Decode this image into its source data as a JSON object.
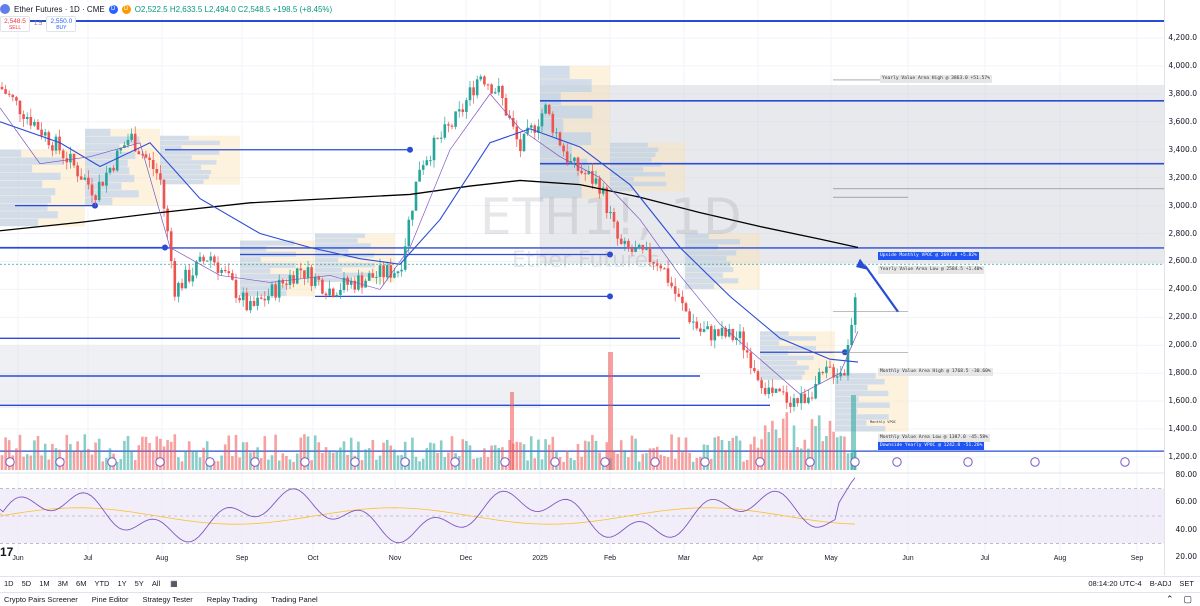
{
  "header": {
    "symbol_title": "Ether Futures · 1D · CME",
    "badge_a": "D",
    "badge_b": "D",
    "ohlc": "O2,522.5 H2,633.5 L2,494.0 C2,548.5 +198.5 (+8.45%)"
  },
  "trade": {
    "sell_price": "2,548.5",
    "sell_label": "SELL",
    "buy_price": "2,550.0",
    "buy_label": "BUY",
    "spread": "1.5"
  },
  "watermark": {
    "symbol": "ETH1!, 1D",
    "name": "Ether Futures"
  },
  "price_axis": [
    "4,200.0",
    "4,000.0",
    "3,800.0",
    "3,600.0",
    "3,400.0",
    "3,200.0",
    "3,000.0",
    "2,800.0",
    "2,600.0",
    "2,400.0",
    "2,200.0",
    "2,000.0",
    "1,800.0",
    "1,600.0",
    "1,400.0",
    "1,200.0"
  ],
  "rsi_axis": [
    "80.00",
    "60.00",
    "40.00",
    "20.00"
  ],
  "time_axis": [
    "Jun",
    "Jul",
    "Aug",
    "Sep",
    "Oct",
    "Nov",
    "Dec",
    "2025",
    "Feb",
    "Mar",
    "Apr",
    "May",
    "Jun",
    "Jul",
    "Aug",
    "Sep"
  ],
  "annotations": {
    "yearly_vah": "Yearly Value Area High @ 3863.0  +51.57%",
    "upside_vpoc": "Upside Monthly VPOC @ 2697.0  +5.82%",
    "yearly_val": "Yearly Value Area Low @ 2584.5  +1.40%",
    "monthly_vah": "Monthly Value Area High @ 1768.5  -30.60%",
    "monthly_val": "Monthly Value Area Low @ 1387.0  -45.58%",
    "downside_vpoc": "Downside Yearly VPOC @ 1242.0  -51.26%",
    "monthly_vpoc_small": "Monthly VPOC"
  },
  "range_bar": {
    "buttons": [
      "1D",
      "5D",
      "1M",
      "3M",
      "6M",
      "YTD",
      "1Y",
      "5Y",
      "All"
    ],
    "clock": "08:14:20 UTC-4",
    "adjust": "B-ADJ",
    "session": "SET"
  },
  "panel_tabs": [
    "Crypto Pairs Screener",
    "Pine Editor",
    "Strategy Tester",
    "Replay Trading",
    "Trading Panel"
  ],
  "rsi_fold": "17",
  "colors": {
    "up": "#26a69a",
    "down": "#ef5350",
    "accent": "#2962ff",
    "line_blue": "#2a4bd7",
    "ma_black": "#000000",
    "rsi_line": "#7e57c2",
    "rsi_ma": "#fbc02d"
  },
  "icons": [
    "calendar-icon",
    "chevron-up-icon",
    "maximize-icon"
  ]
}
